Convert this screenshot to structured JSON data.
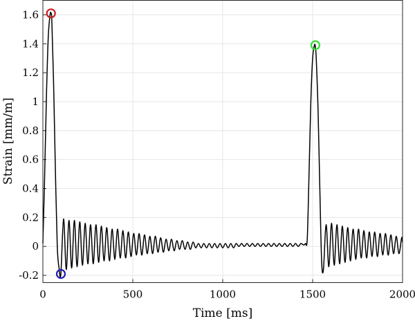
{
  "chart_data": {
    "type": "line",
    "xlabel": "Time [ms]",
    "ylabel": "Strain [mm/m]",
    "xlim": [
      0,
      2000
    ],
    "ylim": [
      -0.25,
      1.7
    ],
    "xticks": [
      0,
      500,
      1000,
      1500,
      2000
    ],
    "xtick_labels": [
      "0",
      "500",
      "1000",
      "1500",
      "2000"
    ],
    "yticks": [
      -0.2,
      0,
      0.2,
      0.4,
      0.6,
      0.8,
      1,
      1.2,
      1.4,
      1.6
    ],
    "ytick_labels": [
      "-0.2",
      "0",
      "0.2",
      "0.4",
      "0.6",
      "0.8",
      "1",
      "1.2",
      "1.4",
      "1.6"
    ],
    "grid": true,
    "series": [
      {
        "color": "#000000",
        "x": [
          0,
          10,
          20,
          30,
          40,
          45,
          50,
          60,
          70,
          80,
          90,
          100,
          115,
          130,
          145,
          160,
          175,
          190,
          205,
          220,
          235,
          250,
          265,
          280,
          295,
          310,
          325,
          340,
          355,
          370,
          385,
          400,
          415,
          430,
          445,
          460,
          475,
          490,
          505,
          520,
          535,
          550,
          565,
          580,
          595,
          610,
          625,
          640,
          655,
          670,
          685,
          700,
          715,
          730,
          745,
          760,
          775,
          790,
          805,
          820,
          835,
          850,
          865,
          880,
          895,
          910,
          925,
          940,
          955,
          970,
          985,
          1000,
          1015,
          1030,
          1045,
          1060,
          1075,
          1090,
          1105,
          1120,
          1135,
          1150,
          1165,
          1180,
          1195,
          1210,
          1225,
          1240,
          1255,
          1270,
          1285,
          1300,
          1315,
          1330,
          1345,
          1360,
          1375,
          1390,
          1405,
          1420,
          1435,
          1450,
          1460,
          1470,
          1480,
          1490,
          1500,
          1510,
          1515,
          1520,
          1530,
          1540,
          1550,
          1560,
          1575,
          1590,
          1605,
          1620,
          1635,
          1650,
          1665,
          1680,
          1695,
          1710,
          1725,
          1740,
          1755,
          1770,
          1785,
          1800,
          1815,
          1830,
          1845,
          1860,
          1875,
          1890,
          1905,
          1920,
          1935,
          1950,
          1965,
          1980,
          1995,
          2000
        ],
        "y": [
          0.02,
          0.5,
          1.05,
          1.45,
          1.6,
          1.61,
          1.55,
          1.1,
          0.5,
          0.0,
          -0.15,
          -0.19,
          0.19,
          -0.16,
          0.18,
          -0.15,
          0.18,
          -0.14,
          0.17,
          -0.13,
          0.16,
          -0.12,
          0.15,
          -0.12,
          0.15,
          -0.11,
          0.14,
          -0.1,
          0.13,
          -0.1,
          0.12,
          -0.09,
          0.12,
          -0.08,
          0.11,
          -0.08,
          0.1,
          -0.07,
          0.09,
          -0.06,
          0.09,
          -0.06,
          0.08,
          -0.05,
          0.07,
          -0.05,
          0.07,
          -0.04,
          0.06,
          -0.04,
          0.05,
          -0.03,
          0.05,
          -0.03,
          0.04,
          -0.02,
          0.04,
          -0.02,
          0.03,
          -0.02,
          0.03,
          -0.01,
          0.02,
          -0.01,
          0.02,
          -0.01,
          0.02,
          -0.01,
          0.02,
          -0.01,
          0.02,
          -0.01,
          0.02,
          -0.01,
          0.02,
          -0.01,
          0.02,
          0.0,
          0.02,
          0.0,
          0.02,
          0.0,
          0.02,
          0.0,
          0.02,
          0.0,
          0.02,
          0.0,
          0.02,
          0.0,
          0.02,
          0.0,
          0.02,
          0.0,
          0.02,
          0.0,
          0.02,
          0.0,
          0.02,
          0.0,
          0.02,
          0.01,
          0.02,
          0.05,
          0.5,
          1.0,
          1.3,
          1.39,
          1.38,
          1.3,
          0.95,
          0.4,
          -0.1,
          -0.16,
          0.15,
          -0.14,
          0.16,
          -0.13,
          0.15,
          -0.12,
          0.14,
          -0.11,
          0.13,
          -0.1,
          0.12,
          -0.09,
          0.12,
          -0.08,
          0.11,
          -0.08,
          0.1,
          -0.07,
          0.1,
          -0.07,
          0.09,
          -0.06,
          0.09,
          -0.06,
          0.08,
          -0.05,
          0.07,
          -0.05,
          0.06,
          0.03
        ]
      }
    ],
    "markers": [
      {
        "x": 45,
        "y": 1.61,
        "color": "#cc1f1f"
      },
      {
        "x": 100,
        "y": -0.19,
        "color": "#1f1fb4"
      },
      {
        "x": 1515,
        "y": 1.39,
        "color": "#33dd33"
      }
    ]
  }
}
